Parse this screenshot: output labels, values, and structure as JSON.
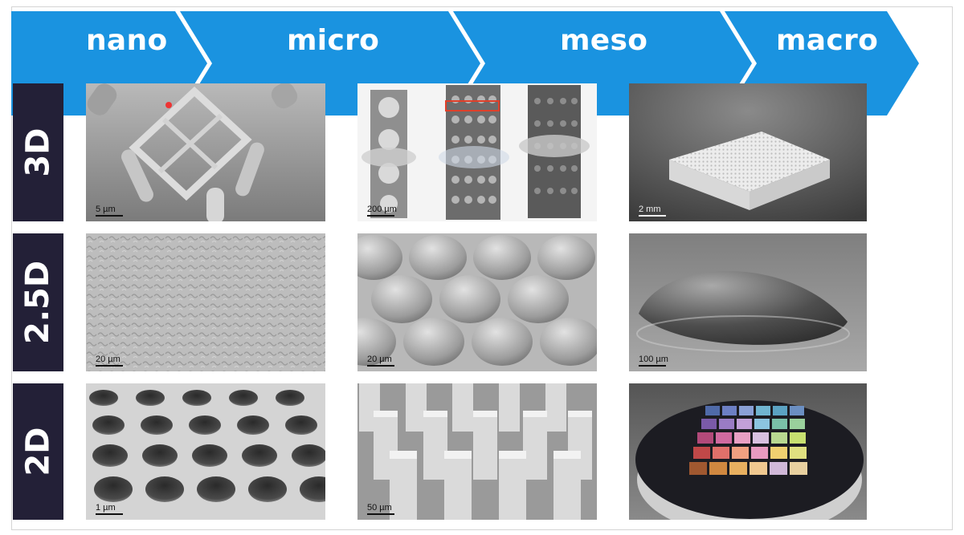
{
  "scales": [
    "nano",
    "micro",
    "meso",
    "macro"
  ],
  "dimensions": [
    "3D",
    "2.5D",
    "2D"
  ],
  "images": {
    "nano_3d": {
      "scale_bar": "5 µm",
      "icon": "nano-cube-lattice"
    },
    "micro_3d": {
      "scale_bar": "200 µm",
      "icon": "lattice-pillars"
    },
    "meso_3d": {
      "scale_bar": "2 mm",
      "icon": "lattice-block"
    },
    "nano_25d": {
      "scale_bar": "20 µm",
      "icon": "textured-surface"
    },
    "micro_25d": {
      "scale_bar": "20 µm",
      "icon": "microlens-array"
    },
    "meso_25d": {
      "scale_bar": "100 µm",
      "icon": "single-lens"
    },
    "nano_2d": {
      "scale_bar": "1 µm",
      "icon": "hole-array"
    },
    "micro_2d": {
      "scale_bar": "50 µm",
      "icon": "pillar-array"
    },
    "meso_2d": {
      "scale_bar": "",
      "icon": "color-wafer"
    }
  },
  "colors": {
    "banner": "#1a93e0",
    "tab": "#232037",
    "label": "#ffffff"
  }
}
